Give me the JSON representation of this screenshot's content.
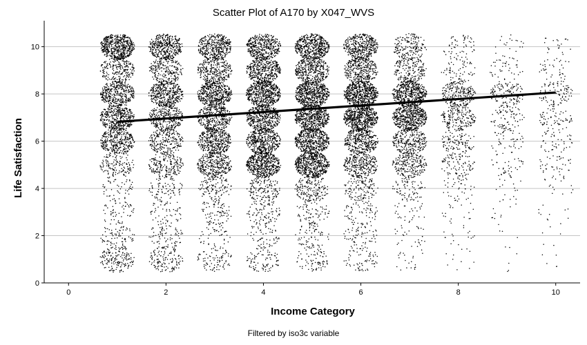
{
  "chart_data": {
    "type": "scatter",
    "title": "Scatter Plot of A170 by X047_WVS",
    "xlabel": "Income Category",
    "ylabel": "Life Satisfaction",
    "footnote": "Filtered by iso3c variable",
    "xlim": [
      -0.5,
      10.5
    ],
    "ylim": [
      0,
      11.1
    ],
    "x_ticks": [
      0,
      2,
      4,
      6,
      8,
      10
    ],
    "y_ticks": [
      0,
      2,
      4,
      6,
      8,
      10
    ],
    "grid": "horizontal",
    "point_color": "#000000",
    "jittered_points": true,
    "x_categories": [
      1,
      2,
      3,
      4,
      5,
      6,
      7,
      8,
      9,
      10
    ],
    "y_categories": [
      1,
      2,
      3,
      4,
      5,
      6,
      7,
      8,
      9,
      10
    ],
    "density_by_income": [
      [
        0.45,
        0.28,
        0.22,
        0.22,
        0.4,
        0.7,
        0.8,
        0.75,
        0.55,
        0.95
      ],
      [
        0.38,
        0.28,
        0.22,
        0.28,
        0.5,
        0.55,
        0.65,
        0.78,
        0.55,
        0.78
      ],
      [
        0.3,
        0.2,
        0.28,
        0.35,
        0.7,
        0.78,
        0.75,
        0.88,
        0.65,
        0.78
      ],
      [
        0.3,
        0.25,
        0.3,
        0.42,
        0.92,
        0.85,
        0.85,
        0.95,
        0.8,
        0.8
      ],
      [
        0.28,
        0.25,
        0.28,
        0.45,
        0.95,
        0.9,
        0.95,
        1.0,
        0.75,
        0.9
      ],
      [
        0.25,
        0.25,
        0.25,
        0.38,
        0.65,
        0.75,
        1.0,
        1.0,
        0.7,
        0.78
      ],
      [
        0.12,
        0.15,
        0.15,
        0.28,
        0.55,
        0.6,
        0.92,
        0.95,
        0.5,
        0.45
      ],
      [
        0.08,
        0.1,
        0.12,
        0.18,
        0.3,
        0.35,
        0.48,
        0.55,
        0.25,
        0.22
      ],
      [
        0.05,
        0.05,
        0.08,
        0.1,
        0.18,
        0.2,
        0.28,
        0.35,
        0.18,
        0.12
      ],
      [
        0.05,
        0.05,
        0.08,
        0.1,
        0.18,
        0.2,
        0.25,
        0.3,
        0.18,
        0.12
      ]
    ],
    "fit_line": {
      "x": [
        1,
        10
      ],
      "y": [
        6.82,
        8.06
      ],
      "color": "#000000"
    }
  }
}
